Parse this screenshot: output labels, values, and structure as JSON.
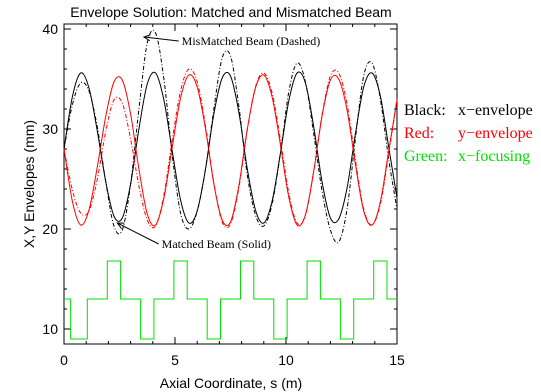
{
  "chart_data": {
    "type": "line",
    "title": "Envelope Solution: Matched and Mismatched Beam",
    "xlabel": "Axial Coordinate, s (m)",
    "ylabel": "X,Y Envelopes (mm)",
    "xlim": [
      0,
      15
    ],
    "ylim": [
      8.5,
      40.5
    ],
    "xticks": [
      0,
      5,
      10,
      15
    ],
    "yticks": [
      10,
      20,
      30,
      40
    ],
    "xtick_labels": [
      "0",
      "5",
      "10",
      "15"
    ],
    "ytick_labels": [
      "10",
      "20",
      "30",
      "40"
    ],
    "grid": false,
    "lattice_period": 3.0,
    "series": [
      {
        "name": "Black: x-envelope (Matched, Solid)",
        "color": "#000000",
        "dash": "solid",
        "x": [
          0.0,
          0.375,
          0.75,
          1.125,
          1.5,
          1.875,
          2.25,
          2.625,
          3.0,
          3.375,
          3.75,
          4.125,
          4.5,
          4.875,
          5.25,
          5.625,
          6.0,
          6.375,
          6.75,
          7.125,
          7.5,
          7.875,
          8.25,
          8.625,
          9.0,
          9.375,
          9.75,
          10.125,
          10.5,
          10.875,
          11.25,
          11.625,
          12.0,
          12.375,
          12.75,
          13.125,
          13.5,
          13.875,
          14.25,
          14.625,
          15.0
        ],
        "y": [
          28.0,
          33.2,
          35.6,
          34.1,
          29.8,
          24.8,
          21.3,
          21.1,
          24.5,
          30.0,
          34.5,
          35.6,
          32.9,
          27.8,
          22.9,
          20.6,
          21.8,
          26.0,
          31.5,
          35.1,
          35.3,
          31.7,
          26.1,
          21.9,
          20.6,
          22.8,
          27.6,
          32.8,
          35.6,
          34.6,
          30.2,
          24.7,
          21.1,
          21.0,
          24.1,
          29.5,
          34.2,
          35.6,
          33.3,
          28.2,
          23.1
        ]
      },
      {
        "name": "Red: y-envelope (Matched, Solid)",
        "color": "#ff0000",
        "dash": "solid",
        "x": [
          0.0,
          0.375,
          0.75,
          1.125,
          1.5,
          1.875,
          2.25,
          2.625,
          3.0,
          3.375,
          3.75,
          4.125,
          4.5,
          4.875,
          5.25,
          5.625,
          6.0,
          6.375,
          6.75,
          7.125,
          7.5,
          7.875,
          8.25,
          8.625,
          9.0,
          9.375,
          9.75,
          10.125,
          10.5,
          10.875,
          11.25,
          11.625,
          12.0,
          12.375,
          12.75,
          13.125,
          13.5,
          13.875,
          14.25,
          14.625,
          15.0
        ],
        "y": [
          28.0,
          22.8,
          20.4,
          21.9,
          26.2,
          31.2,
          34.7,
          34.9,
          31.5,
          26.0,
          21.5,
          20.4,
          23.1,
          28.2,
          33.1,
          35.4,
          34.2,
          30.0,
          24.5,
          20.9,
          20.7,
          24.3,
          29.9,
          34.1,
          35.4,
          33.2,
          28.4,
          23.2,
          20.4,
          21.4,
          25.8,
          31.3,
          34.9,
          35.0,
          31.9,
          26.5,
          21.8,
          20.4,
          22.7,
          27.8,
          32.9
        ]
      },
      {
        "name": "Black: x-envelope (MisMatched, Dashed)",
        "color": "#000000",
        "dash": "dashed",
        "x": [
          0.0,
          0.375,
          0.75,
          1.125,
          1.5,
          1.875,
          2.25,
          2.625,
          3.0,
          3.375,
          3.75,
          4.125,
          4.5,
          4.875,
          5.25,
          5.625,
          6.0,
          6.375,
          6.75,
          7.125,
          7.5,
          7.875,
          8.25,
          8.625,
          9.0,
          9.375,
          9.75,
          10.125,
          10.5,
          10.875,
          11.25,
          11.625,
          12.0,
          12.375,
          12.75,
          13.125,
          13.5,
          13.875,
          14.25,
          14.625,
          15.0
        ],
        "y": [
          28.0,
          32.4,
          34.6,
          33.8,
          30.2,
          24.8,
          20.3,
          19.9,
          24.5,
          32.0,
          38.6,
          39.6,
          35.0,
          27.4,
          21.6,
          20.0,
          21.8,
          26.0,
          32.0,
          37.1,
          37.3,
          32.3,
          25.5,
          21.4,
          20.3,
          22.5,
          27.6,
          33.7,
          36.6,
          34.7,
          29.5,
          23.8,
          19.9,
          18.7,
          22.0,
          29.0,
          35.3,
          36.6,
          33.0,
          27.0,
          22.0
        ]
      },
      {
        "name": "Red: y-envelope (MisMatched, Dashed)",
        "color": "#ff0000",
        "dash": "dashed",
        "x": [
          0.0,
          0.375,
          0.75,
          1.125,
          1.5,
          1.875,
          2.25,
          2.625,
          3.0,
          3.375,
          3.75,
          4.125,
          4.5,
          4.875,
          5.25,
          5.625,
          6.0,
          6.375,
          6.75,
          7.125,
          7.5,
          7.875,
          8.25,
          8.625,
          9.0,
          9.375,
          9.75,
          10.125,
          10.5,
          10.875,
          11.25,
          11.625,
          12.0,
          12.375,
          12.75,
          13.125,
          13.5,
          13.875,
          14.25,
          14.625,
          15.0
        ],
        "y": [
          28.0,
          23.9,
          21.6,
          21.8,
          25.0,
          29.7,
          32.9,
          32.6,
          29.0,
          24.3,
          20.9,
          20.3,
          23.4,
          28.9,
          33.8,
          36.0,
          34.7,
          30.3,
          24.6,
          20.7,
          20.5,
          24.1,
          29.8,
          34.2,
          35.6,
          33.6,
          28.9,
          23.6,
          20.6,
          21.4,
          25.8,
          31.4,
          35.3,
          35.6,
          32.5,
          26.9,
          22.0,
          20.4,
          22.5,
          27.5,
          33.0
        ]
      },
      {
        "name": "Green: x-focusing",
        "color": "#00e000",
        "dash": "solid",
        "step": true,
        "x": [
          0.0,
          0.3,
          0.3,
          1.05,
          1.05,
          1.95,
          1.95,
          2.55,
          2.55,
          3.45,
          3.45,
          4.05,
          4.05,
          4.95,
          4.95,
          5.55,
          5.55,
          6.45,
          6.45,
          7.05,
          7.05,
          7.95,
          7.95,
          8.55,
          8.55,
          9.45,
          9.45,
          10.05,
          10.05,
          10.95,
          10.95,
          11.55,
          11.55,
          12.45,
          12.45,
          13.05,
          13.05,
          13.95,
          13.95,
          14.55,
          14.55,
          15.0
        ],
        "y": [
          13.0,
          13.0,
          9.0,
          9.0,
          13.0,
          13.0,
          16.8,
          16.8,
          13.0,
          13.0,
          9.0,
          9.0,
          13.0,
          13.0,
          16.8,
          16.8,
          13.0,
          13.0,
          9.0,
          9.0,
          13.0,
          13.0,
          16.8,
          16.8,
          13.0,
          13.0,
          9.0,
          9.0,
          13.0,
          13.0,
          16.8,
          16.8,
          13.0,
          13.0,
          9.0,
          9.0,
          13.0,
          13.0,
          16.8,
          16.8,
          13.0,
          13.0
        ]
      }
    ],
    "annotations": [
      {
        "text": "MisMatched Beam (Dashed)",
        "arrow_to": [
          3.6,
          39.2
        ],
        "text_at": [
          5.3,
          38.4
        ]
      },
      {
        "text": "Matched Beam (Solid)",
        "arrow_to": [
          2.4,
          20.6
        ],
        "text_at": [
          4.4,
          18.1
        ]
      }
    ],
    "legend": {
      "position": "right",
      "items": [
        {
          "key": "Black:",
          "label": "x−envelope",
          "color": "#000000"
        },
        {
          "key": "Red:",
          "label": "y−envelope",
          "color": "#ff0000"
        },
        {
          "key": "Green:",
          "label": "x−focusing",
          "color": "#00e000"
        }
      ]
    }
  }
}
